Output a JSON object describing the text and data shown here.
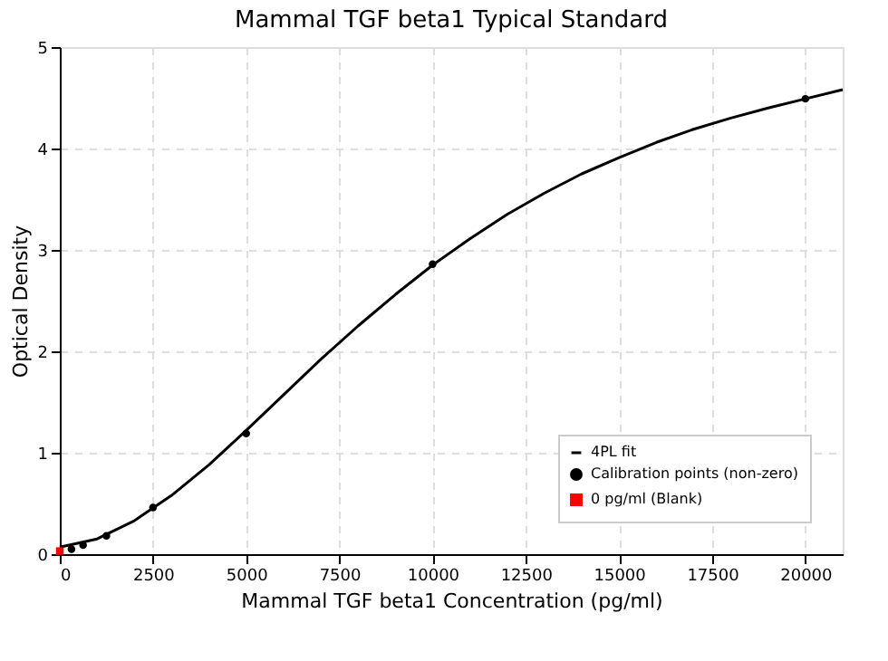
{
  "chart_data": {
    "type": "scatter",
    "title": "Mammal TGF beta1 Typical Standard",
    "xlabel": "Mammal TGF beta1 Concentration (pg/ml)",
    "ylabel": "Optical Density",
    "xlim": [
      0,
      21000
    ],
    "xticks": [
      0,
      2500,
      5000,
      7500,
      10000,
      12500,
      15000,
      17500,
      20000
    ],
    "ylim": [
      0,
      5
    ],
    "yticks": [
      0,
      1,
      2,
      3,
      4,
      5
    ],
    "grid": true,
    "legend": "bottom right",
    "series": [
      {
        "name": "4PL fit",
        "type": "line",
        "color": "#000000",
        "marker": "none",
        "line_style": "solid",
        "x": [
          0,
          1000,
          2000,
          3000,
          4000,
          5000,
          6000,
          7000,
          8000,
          9000,
          10000,
          11000,
          12000,
          13000,
          14000,
          15000,
          16000,
          17000,
          18000,
          19000,
          20000,
          21000
        ],
        "values": [
          0.07,
          0.15,
          0.33,
          0.58,
          0.88,
          1.22,
          1.57,
          1.92,
          2.25,
          2.56,
          2.85,
          3.11,
          3.35,
          3.56,
          3.75,
          3.91,
          4.06,
          4.19,
          4.3,
          4.4,
          4.49,
          4.58
        ]
      },
      {
        "name": "Calibration points (non-zero)",
        "color": "#000000",
        "marker": "circle",
        "x": [
          312.5,
          625,
          1250,
          2500,
          5000,
          10000,
          20000
        ],
        "values": [
          0.05,
          0.09,
          0.18,
          0.46,
          1.19,
          2.86,
          4.49
        ]
      },
      {
        "name": "0 pg/ml (Blank)",
        "type": "scatter",
        "color": "#ff0000",
        "marker": "square",
        "x": [
          0
        ],
        "values": [
          0.03
        ]
      }
    ]
  }
}
